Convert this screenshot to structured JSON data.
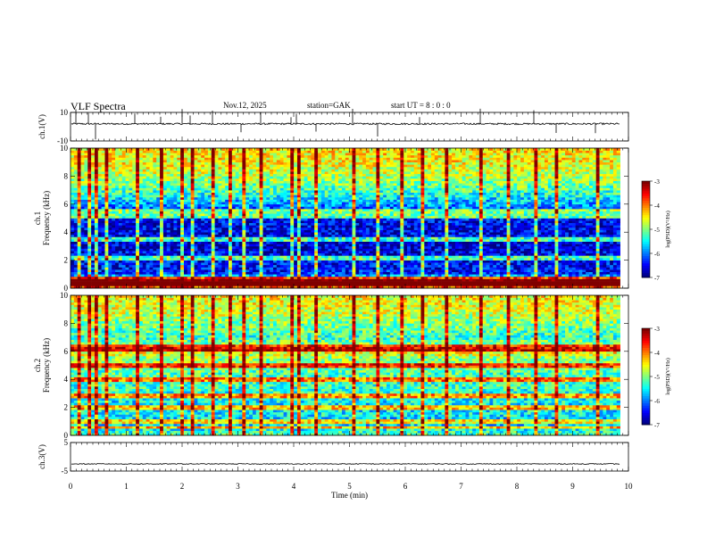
{
  "header": {
    "title": "VLF  Spectra",
    "date": "Nov.12, 2025",
    "station": "station=GAK",
    "start_ut": "start  UT  =    8  : 0  : 0"
  },
  "chart_data": [
    {
      "type": "line",
      "panel": "ch1-waveform",
      "ylabel": "ch.1(V)",
      "ylim": [
        -10,
        10
      ],
      "yticks": [
        "10",
        "-10"
      ],
      "baseline": 2,
      "noise_amplitude": 0.6,
      "spikes": [
        0.1,
        0.32,
        0.45,
        1.15,
        1.62,
        2.0,
        2.15,
        2.55,
        3.05,
        3.4,
        3.95,
        4.05,
        4.4,
        5.05,
        5.5,
        6.25,
        7.35,
        8.3,
        8.7,
        9.4
      ]
    },
    {
      "type": "heatmap",
      "panel": "ch1-spectrogram",
      "ylabel": "ch.1\nFrequency (kHz)",
      "ylim": [
        0,
        10
      ],
      "yticks": [
        "0",
        "2",
        "4",
        "6",
        "8",
        "10"
      ],
      "colorbar": {
        "label": "log(PSD)(V²/Hz)",
        "range": [
          -7,
          -3
        ],
        "ticks": [
          "-3",
          "-4",
          "-5",
          "-6",
          "-7"
        ]
      },
      "profile_khz": [
        0,
        0.5,
        1.0,
        1.5,
        2.0,
        3.0,
        3.5,
        4.5,
        5.5,
        6.0,
        7.0,
        8.0,
        9.0,
        10.0
      ],
      "profile_logpsd": [
        -3.8,
        -3.6,
        -6.4,
        -6.5,
        -6.5,
        -6.7,
        -6.6,
        -6.6,
        -6.3,
        -5.9,
        -5.2,
        -4.8,
        -4.5,
        -4.4
      ],
      "lines_khz": [
        0.3,
        0.7,
        2.2,
        3.5,
        5.2,
        5.5
      ],
      "vertical_spikes_min": [
        0.1,
        0.32,
        0.45,
        0.6,
        1.15,
        1.62,
        2.0,
        2.15,
        2.55,
        2.85,
        3.05,
        3.4,
        3.95,
        4.05,
        4.4,
        5.05,
        5.5,
        5.9,
        6.25,
        6.7,
        7.35,
        7.8,
        8.3,
        8.7,
        9.4
      ]
    },
    {
      "type": "heatmap",
      "panel": "ch2-spectrogram",
      "ylabel": "ch.2\nFrequency (kHz)",
      "ylim": [
        0,
        10
      ],
      "yticks": [
        "0",
        "2",
        "4",
        "6",
        "8",
        "10"
      ],
      "colorbar": {
        "label": "log(PSD)(V²/Hz)",
        "range": [
          -7,
          -3
        ],
        "ticks": [
          "-3",
          "-4",
          "-5",
          "-6",
          "-7"
        ]
      },
      "profile_khz": [
        0,
        0.5,
        1.0,
        1.5,
        2.0,
        3.0,
        3.5,
        4.5,
        5.0,
        5.5,
        6.0,
        6.5,
        7.0,
        8.0,
        9.0,
        10.0
      ],
      "profile_logpsd": [
        -5.2,
        -5.5,
        -5.8,
        -5.5,
        -5.6,
        -5.4,
        -5.3,
        -5.2,
        -4.9,
        -5.0,
        -4.4,
        -5.0,
        -5.3,
        -5.0,
        -4.6,
        -4.5
      ],
      "lines_khz": [
        0.6,
        1.0,
        2.0,
        2.8,
        4.0,
        5.0,
        6.1,
        6.3
      ],
      "vertical_spikes_min": [
        0.1,
        0.32,
        0.45,
        0.6,
        1.15,
        1.62,
        2.0,
        2.15,
        2.55,
        2.85,
        3.05,
        3.4,
        3.95,
        4.05,
        4.4,
        5.05,
        5.5,
        5.9,
        6.25,
        6.7,
        7.35,
        7.8,
        8.3,
        8.7,
        9.4
      ]
    },
    {
      "type": "line",
      "panel": "ch3-waveform",
      "ylabel": "ch.3(V)",
      "ylim": [
        -5,
        5
      ],
      "yticks": [
        "5",
        "-5"
      ],
      "baseline": -2.5,
      "noise_amplitude": 0.15
    }
  ],
  "x_axis": {
    "label": "Time  (min)",
    "range": [
      0,
      10
    ],
    "ticks": [
      "0",
      "1",
      "2",
      "3",
      "4",
      "5",
      "6",
      "7",
      "8",
      "9",
      "10"
    ],
    "data_end": 9.85
  }
}
